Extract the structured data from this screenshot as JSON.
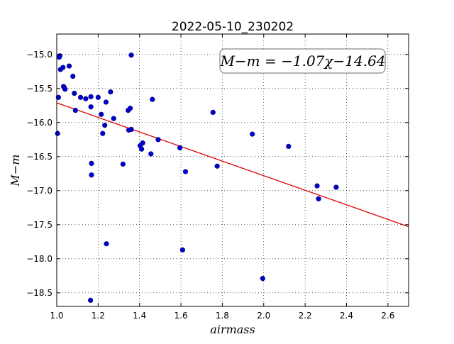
{
  "chart_data": {
    "type": "scatter",
    "title": "2022-05-10_230202",
    "xlabel": "airmass",
    "ylabel": "M−m",
    "xlim": [
      1.0,
      2.7
    ],
    "ylim": [
      -18.7,
      -14.7
    ],
    "y_inverted": true,
    "grid": true,
    "x_ticks": [
      1.0,
      1.2,
      1.4,
      1.6,
      1.8,
      2.0,
      2.2,
      2.4,
      2.6
    ],
    "x_tick_labels": [
      "1.0",
      "1.2",
      "1.4",
      "1.6",
      "1.8",
      "2.0",
      "2.2",
      "2.4",
      "2.6"
    ],
    "y_ticks": [
      -15.0,
      -15.5,
      -16.0,
      -16.5,
      -17.0,
      -17.5,
      -18.0,
      -18.5
    ],
    "y_tick_labels": [
      "−15.0",
      "−15.5",
      "−16.0",
      "−16.5",
      "−17.0",
      "−17.5",
      "−18.0",
      "−18.5"
    ],
    "marker_color": "#0000cc",
    "fit_color": "#dd0000",
    "fit": {
      "slope": -1.07,
      "intercept": -14.64,
      "x_range": [
        1.0,
        2.7
      ]
    },
    "fit_label": "M−m = −1.07χ−14.64",
    "points": [
      {
        "x": 1.004,
        "y": -16.16
      },
      {
        "x": 1.008,
        "y": -15.63
      },
      {
        "x": 1.012,
        "y": -15.04
      },
      {
        "x": 1.015,
        "y": -15.02
      },
      {
        "x": 1.018,
        "y": -15.22
      },
      {
        "x": 1.03,
        "y": -15.19
      },
      {
        "x": 1.033,
        "y": -15.47
      },
      {
        "x": 1.037,
        "y": -15.49
      },
      {
        "x": 1.04,
        "y": -15.51
      },
      {
        "x": 1.06,
        "y": -15.17
      },
      {
        "x": 1.078,
        "y": -15.32
      },
      {
        "x": 1.085,
        "y": -15.57
      },
      {
        "x": 1.09,
        "y": -15.82
      },
      {
        "x": 1.115,
        "y": -15.63
      },
      {
        "x": 1.14,
        "y": -15.65
      },
      {
        "x": 1.165,
        "y": -15.62
      },
      {
        "x": 1.165,
        "y": -15.77
      },
      {
        "x": 1.168,
        "y": -16.6
      },
      {
        "x": 1.168,
        "y": -16.77
      },
      {
        "x": 1.163,
        "y": -18.61
      },
      {
        "x": 1.2,
        "y": -15.63
      },
      {
        "x": 1.215,
        "y": -15.88
      },
      {
        "x": 1.222,
        "y": -16.16
      },
      {
        "x": 1.232,
        "y": -16.04
      },
      {
        "x": 1.238,
        "y": -15.7
      },
      {
        "x": 1.24,
        "y": -17.78
      },
      {
        "x": 1.26,
        "y": -15.55
      },
      {
        "x": 1.275,
        "y": -15.94
      },
      {
        "x": 1.32,
        "y": -16.61
      },
      {
        "x": 1.345,
        "y": -15.82
      },
      {
        "x": 1.348,
        "y": -16.11
      },
      {
        "x": 1.355,
        "y": -15.79
      },
      {
        "x": 1.36,
        "y": -16.1
      },
      {
        "x": 1.36,
        "y": -15.01
      },
      {
        "x": 1.403,
        "y": -16.34
      },
      {
        "x": 1.41,
        "y": -16.39
      },
      {
        "x": 1.415,
        "y": -16.3
      },
      {
        "x": 1.455,
        "y": -16.46
      },
      {
        "x": 1.462,
        "y": -15.66
      },
      {
        "x": 1.49,
        "y": -16.25
      },
      {
        "x": 1.595,
        "y": -16.37
      },
      {
        "x": 1.608,
        "y": -17.87
      },
      {
        "x": 1.622,
        "y": -16.72
      },
      {
        "x": 1.755,
        "y": -15.85
      },
      {
        "x": 1.775,
        "y": -16.64
      },
      {
        "x": 1.945,
        "y": -16.17
      },
      {
        "x": 1.995,
        "y": -18.29
      },
      {
        "x": 2.12,
        "y": -16.35
      },
      {
        "x": 2.258,
        "y": -16.93
      },
      {
        "x": 2.265,
        "y": -17.12
      },
      {
        "x": 2.35,
        "y": -16.95
      }
    ]
  }
}
